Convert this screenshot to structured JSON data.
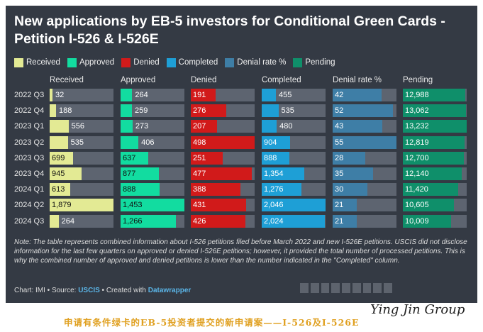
{
  "title": "New applications by EB-5 investors for Conditional Green Cards  - Petition I-526 & I-526E",
  "legend": [
    {
      "label": "Received",
      "color": "#e3ea94"
    },
    {
      "label": "Approved",
      "color": "#12dca0"
    },
    {
      "label": "Denied",
      "color": "#d11a1a"
    },
    {
      "label": "Completed",
      "color": "#1e9fd6"
    },
    {
      "label": "Denial rate %",
      "color": "#3e7ea6"
    },
    {
      "label": "Pending",
      "color": "#0f8f6a"
    }
  ],
  "chart_data": {
    "type": "table",
    "rows": [
      "2022 Q3",
      "2022 Q4",
      "2023 Q1",
      "2023 Q2",
      "2023 Q3",
      "2023 Q4",
      "2024 Q1",
      "2024 Q2",
      "2024 Q3"
    ],
    "columns": [
      {
        "name": "Received",
        "color": "#e3ea94",
        "max": 1879,
        "values": [
          32,
          188,
          556,
          535,
          699,
          945,
          613,
          1879,
          264
        ],
        "display": [
          "32",
          "188",
          "556",
          "535",
          "699",
          "945",
          "613",
          "1,879",
          "264"
        ]
      },
      {
        "name": "Approved",
        "color": "#12dca0",
        "max": 1453,
        "values": [
          264,
          259,
          273,
          406,
          637,
          877,
          888,
          1453,
          1266
        ],
        "display": [
          "264",
          "259",
          "273",
          "406",
          "637",
          "877",
          "888",
          "1,453",
          "1,266"
        ]
      },
      {
        "name": "Denied",
        "color": "#d11a1a",
        "max": 498,
        "values": [
          191,
          276,
          207,
          498,
          251,
          477,
          388,
          431,
          426
        ],
        "display": [
          "191",
          "276",
          "207",
          "498",
          "251",
          "477",
          "388",
          "431",
          "426"
        ]
      },
      {
        "name": "Completed",
        "color": "#1e9fd6",
        "max": 2046,
        "values": [
          455,
          535,
          480,
          904,
          888,
          1354,
          1276,
          2046,
          2024
        ],
        "display": [
          "455",
          "535",
          "480",
          "904",
          "888",
          "1,354",
          "1,276",
          "2,046",
          "2,024"
        ]
      },
      {
        "name": "Denial rate %",
        "color": "#3e7ea6",
        "max": 55,
        "values": [
          42,
          52,
          43,
          55,
          28,
          35,
          30,
          21,
          21
        ],
        "display": [
          "42",
          "52",
          "43",
          "55",
          "28",
          "35",
          "30",
          "21",
          "21"
        ]
      },
      {
        "name": "Pending",
        "color": "#0f8f6a",
        "max": 13232,
        "values": [
          12988,
          13062,
          13232,
          12819,
          12700,
          12140,
          11420,
          10605,
          10009
        ],
        "display": [
          "12,988",
          "13,062",
          "13,232",
          "12,819",
          "12,700",
          "12,140",
          "11,420",
          "10,605",
          "10,009"
        ]
      }
    ]
  },
  "note": "Note: The table represents combined information about I-526 petitions filed before March 2022 and new I-526E petitions. USCIS did not disclose information for the last few quarters on approved or denied I-526E petitions; however, it provided the total number of processed petitions. This is why the combined number of approved and denied petitions is lower than the number indicated in the \"Completed\" column.",
  "source": {
    "prefix": "Chart: IMI • Source: ",
    "source_link": "USCIS",
    "middle": " • Created with ",
    "tool_link": "Datawrapper"
  },
  "caption": "申请有条件绿卡的EB-5投资者提交的新申请案——I-526及I-526E",
  "watermark": "Ying Jin Group"
}
